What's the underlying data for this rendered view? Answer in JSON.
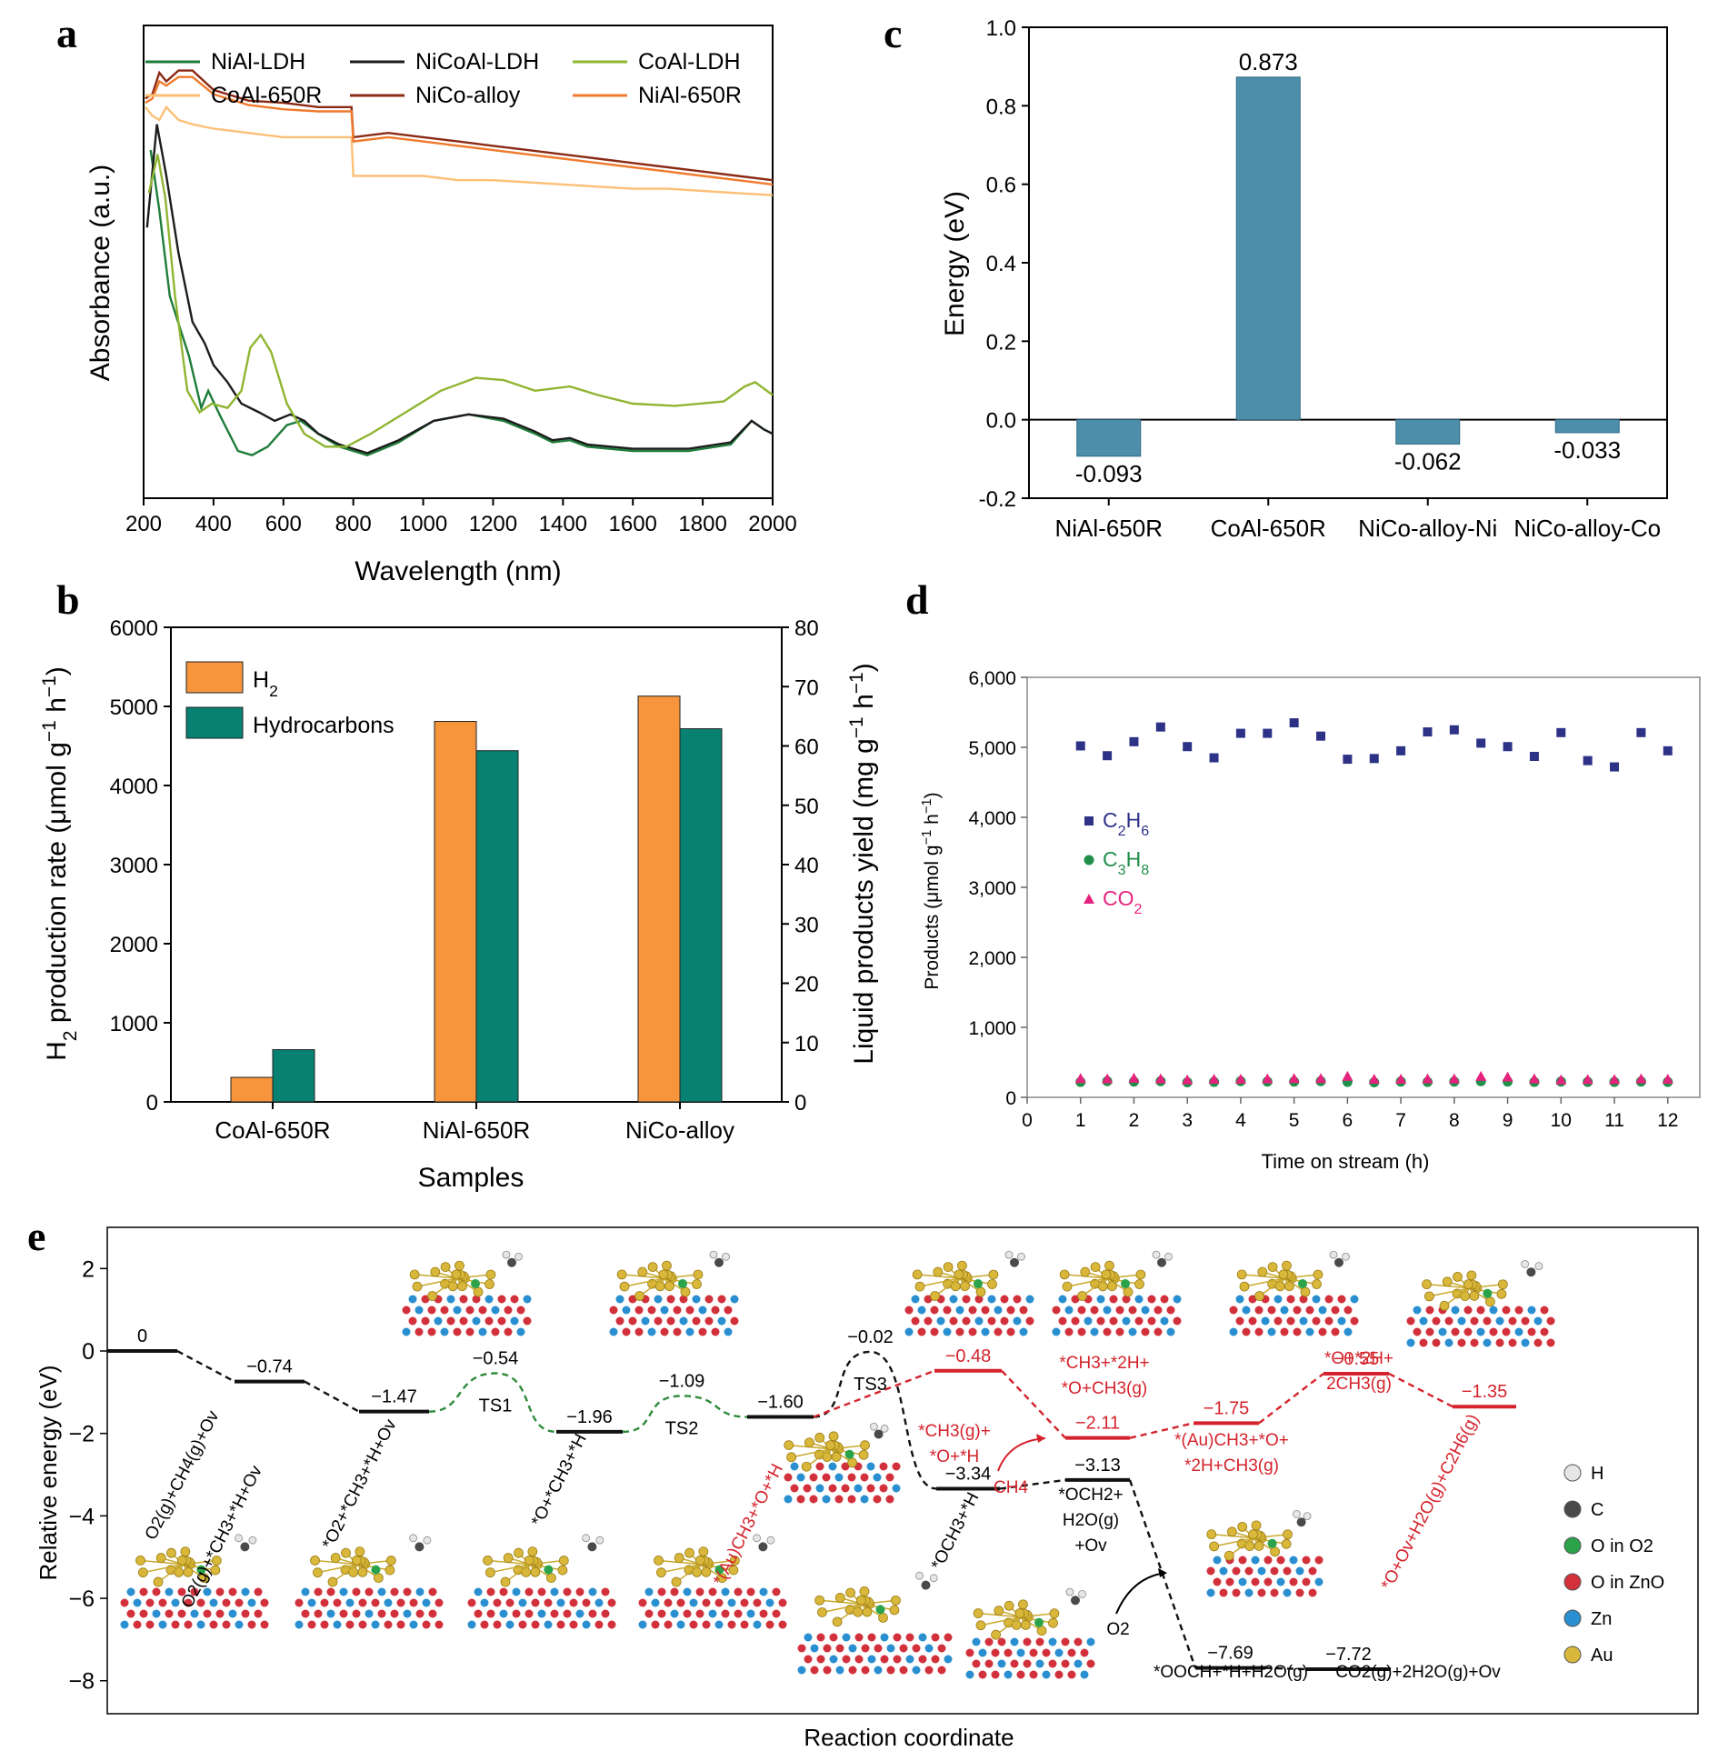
{
  "panel_letters": [
    "a",
    "b",
    "c",
    "d",
    "e"
  ],
  "chart_data": [
    {
      "panel": "a",
      "type": "line",
      "xlabel": "Wavelength (nm)",
      "ylabel": "Absorbance (a.u.)",
      "xlim": [
        200,
        2000
      ],
      "xticks": [
        "200",
        "400",
        "600",
        "800",
        "1000",
        "1200",
        "1400",
        "1600",
        "1800",
        "2000"
      ],
      "yticks": "none",
      "legend": "top, 3 columns",
      "series": [
        {
          "name": "NiAl-LDH",
          "color": "#1e7d3a",
          "points": [
            [
              220,
              1.06
            ],
            [
              245,
              0.92
            ],
            [
              275,
              0.72
            ],
            [
              330,
              0.58
            ],
            [
              365,
              0.46
            ],
            [
              385,
              0.5
            ],
            [
              420,
              0.44
            ],
            [
              470,
              0.36
            ],
            [
              510,
              0.35
            ],
            [
              555,
              0.37
            ],
            [
              610,
              0.42
            ],
            [
              650,
              0.43
            ],
            [
              700,
              0.4
            ],
            [
              760,
              0.37
            ],
            [
              840,
              0.35
            ],
            [
              930,
              0.38
            ],
            [
              1030,
              0.43
            ],
            [
              1130,
              0.445
            ],
            [
              1230,
              0.43
            ],
            [
              1320,
              0.4
            ],
            [
              1370,
              0.38
            ],
            [
              1420,
              0.385
            ],
            [
              1470,
              0.37
            ],
            [
              1600,
              0.36
            ],
            [
              1760,
              0.36
            ],
            [
              1880,
              0.375
            ],
            [
              1940,
              0.43
            ],
            [
              1975,
              0.41
            ],
            [
              2000,
              0.4
            ]
          ]
        },
        {
          "name": "NiCoAl-LDH",
          "color": "#1c1c1c",
          "points": [
            [
              210,
              0.88
            ],
            [
              238,
              1.12
            ],
            [
              265,
              1.0
            ],
            [
              300,
              0.82
            ],
            [
              340,
              0.66
            ],
            [
              375,
              0.61
            ],
            [
              400,
              0.56
            ],
            [
              440,
              0.52
            ],
            [
              480,
              0.47
            ],
            [
              530,
              0.45
            ],
            [
              575,
              0.43
            ],
            [
              620,
              0.445
            ],
            [
              660,
              0.43
            ],
            [
              700,
              0.4
            ],
            [
              760,
              0.375
            ],
            [
              840,
              0.355
            ],
            [
              930,
              0.385
            ],
            [
              1030,
              0.43
            ],
            [
              1130,
              0.445
            ],
            [
              1230,
              0.435
            ],
            [
              1320,
              0.405
            ],
            [
              1370,
              0.385
            ],
            [
              1420,
              0.39
            ],
            [
              1470,
              0.375
            ],
            [
              1600,
              0.365
            ],
            [
              1760,
              0.365
            ],
            [
              1880,
              0.38
            ],
            [
              1940,
              0.43
            ],
            [
              1975,
              0.41
            ],
            [
              2000,
              0.4
            ]
          ]
        },
        {
          "name": "CoAl-LDH",
          "color": "#8fb531",
          "points": [
            [
              215,
              0.96
            ],
            [
              240,
              1.05
            ],
            [
              262,
              0.95
            ],
            [
              290,
              0.72
            ],
            [
              325,
              0.5
            ],
            [
              360,
              0.45
            ],
            [
              395,
              0.47
            ],
            [
              440,
              0.46
            ],
            [
              480,
              0.5
            ],
            [
              505,
              0.6
            ],
            [
              535,
              0.63
            ],
            [
              565,
              0.59
            ],
            [
              610,
              0.47
            ],
            [
              660,
              0.4
            ],
            [
              720,
              0.37
            ],
            [
              780,
              0.37
            ],
            [
              850,
              0.4
            ],
            [
              950,
              0.45
            ],
            [
              1050,
              0.5
            ],
            [
              1150,
              0.53
            ],
            [
              1230,
              0.525
            ],
            [
              1320,
              0.5
            ],
            [
              1420,
              0.51
            ],
            [
              1500,
              0.49
            ],
            [
              1600,
              0.47
            ],
            [
              1720,
              0.465
            ],
            [
              1860,
              0.475
            ],
            [
              1920,
              0.51
            ],
            [
              1950,
              0.52
            ],
            [
              2000,
              0.49
            ]
          ]
        },
        {
          "name": "CoAl-650R",
          "color": "#fcc077",
          "points": [
            [
              205,
              1.16
            ],
            [
              225,
              1.14
            ],
            [
              245,
              1.13
            ],
            [
              265,
              1.16
            ],
            [
              300,
              1.13
            ],
            [
              340,
              1.12
            ],
            [
              400,
              1.11
            ],
            [
              500,
              1.1
            ],
            [
              600,
              1.09
            ],
            [
              700,
              1.09
            ],
            [
              795,
              1.09
            ],
            [
              800,
              1.0
            ],
            [
              900,
              1.0
            ],
            [
              1000,
              1.0
            ],
            [
              1100,
              0.99
            ],
            [
              1200,
              0.99
            ],
            [
              1300,
              0.985
            ],
            [
              1400,
              0.98
            ],
            [
              1500,
              0.975
            ],
            [
              1600,
              0.97
            ],
            [
              1700,
              0.97
            ],
            [
              1800,
              0.965
            ],
            [
              1900,
              0.96
            ],
            [
              2000,
              0.955
            ]
          ]
        },
        {
          "name": "NiCo-alloy",
          "color": "#8b2a14",
          "points": [
            [
              205,
              1.18
            ],
            [
              225,
              1.19
            ],
            [
              245,
              1.24
            ],
            [
              265,
              1.22
            ],
            [
              300,
              1.245
            ],
            [
              340,
              1.245
            ],
            [
              400,
              1.2
            ],
            [
              500,
              1.175
            ],
            [
              600,
              1.17
            ],
            [
              700,
              1.16
            ],
            [
              795,
              1.16
            ],
            [
              800,
              1.09
            ],
            [
              900,
              1.1
            ],
            [
              1000,
              1.09
            ],
            [
              1100,
              1.08
            ],
            [
              1200,
              1.07
            ],
            [
              1300,
              1.06
            ],
            [
              1400,
              1.05
            ],
            [
              1500,
              1.04
            ],
            [
              1600,
              1.03
            ],
            [
              1700,
              1.02
            ],
            [
              1800,
              1.01
            ],
            [
              1900,
              1.0
            ],
            [
              2000,
              0.99
            ]
          ]
        },
        {
          "name": "NiAl-650R",
          "color": "#ef7a2d",
          "points": [
            [
              205,
              1.17
            ],
            [
              225,
              1.18
            ],
            [
              245,
              1.22
            ],
            [
              265,
              1.21
            ],
            [
              300,
              1.23
            ],
            [
              340,
              1.23
            ],
            [
              400,
              1.19
            ],
            [
              500,
              1.165
            ],
            [
              600,
              1.155
            ],
            [
              700,
              1.15
            ],
            [
              795,
              1.15
            ],
            [
              800,
              1.08
            ],
            [
              900,
              1.09
            ],
            [
              1000,
              1.08
            ],
            [
              1100,
              1.07
            ],
            [
              1200,
              1.06
            ],
            [
              1300,
              1.05
            ],
            [
              1400,
              1.04
            ],
            [
              1500,
              1.03
            ],
            [
              1600,
              1.02
            ],
            [
              1700,
              1.01
            ],
            [
              1800,
              1.0
            ],
            [
              1900,
              0.99
            ],
            [
              2000,
              0.98
            ]
          ]
        }
      ]
    },
    {
      "panel": "b",
      "type": "bar",
      "xlabel": "Samples",
      "ylabel": "H2 production rate (μmol g⁻¹ h⁻¹)",
      "ylabel2": "Liquid products yield (mg g⁻¹ h⁻¹)",
      "categories": [
        "CoAl-650R",
        "NiAl-650R",
        "NiCo-alloy"
      ],
      "ylim": [
        0,
        6000
      ],
      "yticks": [
        "0",
        "1000",
        "2000",
        "3000",
        "4000",
        "5000",
        "6000"
      ],
      "ylim2": [
        0,
        80
      ],
      "yticks2": [
        "0",
        "10",
        "20",
        "30",
        "40",
        "50",
        "60",
        "70",
        "80"
      ],
      "legend": "top-left",
      "series": [
        {
          "name": "H2",
          "color": "#f7953d",
          "axis": "left",
          "values": [
            310,
            4810,
            5130
          ]
        },
        {
          "name": "Hydrocarbons",
          "color": "#078272",
          "axis": "right",
          "values": [
            8.8,
            59.2,
            62.9
          ]
        }
      ]
    },
    {
      "panel": "c",
      "type": "bar",
      "xlabel": "",
      "ylabel": "Energy (eV)",
      "categories": [
        "NiAl-650R",
        "CoAl-650R",
        "NiCo-alloy-Ni",
        "NiCo-alloy-Co"
      ],
      "values": [
        -0.093,
        0.873,
        -0.062,
        -0.033
      ],
      "data_labels": [
        "-0.093",
        "0.873",
        "-0.062",
        "-0.033"
      ],
      "ylim": [
        -0.2,
        1.0
      ],
      "yticks": [
        "-0.2",
        "0.0",
        "0.2",
        "0.4",
        "0.6",
        "0.8",
        "1.0"
      ],
      "bar_color": "#4d8eab"
    },
    {
      "panel": "d",
      "type": "scatter",
      "xlabel": "Time on stream (h)",
      "ylabel": "Products (μmol g⁻¹ h⁻¹)",
      "xlim": [
        0,
        12.6
      ],
      "xticks": [
        "0",
        "1",
        "2",
        "3",
        "4",
        "5",
        "6",
        "7",
        "8",
        "9",
        "10",
        "11",
        "12"
      ],
      "ylim": [
        0,
        6000
      ],
      "yticks": [
        "0",
        "1,000",
        "2,000",
        "3,000",
        "4,000",
        "5,000",
        "6,000"
      ],
      "legend": "left-center",
      "x": [
        1,
        1.5,
        2,
        2.5,
        3,
        3.5,
        4,
        4.5,
        5,
        5.5,
        6,
        6.5,
        7,
        7.5,
        8,
        8.5,
        9,
        9.5,
        10,
        10.5,
        11,
        11.5,
        12
      ],
      "series": [
        {
          "name": "C2H6",
          "label_parts": [
            "C",
            "2",
            "H",
            "6"
          ],
          "marker": "square",
          "color": "#2d3287",
          "values": [
            5020,
            4880,
            5080,
            5290,
            5010,
            4850,
            5200,
            5200,
            5350,
            5160,
            4830,
            4840,
            4950,
            5220,
            5250,
            5060,
            5010,
            4870,
            5210,
            4810,
            4720,
            5210,
            4950
          ]
        },
        {
          "name": "C3H8",
          "label_parts": [
            "C",
            "3",
            "H",
            "8"
          ],
          "marker": "circle",
          "color": "#1f8f4a",
          "values": [
            220,
            230,
            225,
            230,
            215,
            220,
            230,
            225,
            225,
            230,
            220,
            215,
            225,
            220,
            225,
            230,
            225,
            220,
            225,
            220,
            220,
            225,
            220
          ]
        },
        {
          "name": "CO2",
          "label_parts": [
            "CO",
            "2",
            "",
            ""
          ],
          "marker": "triangle",
          "color": "#e5237d",
          "values": [
            270,
            265,
            275,
            265,
            250,
            260,
            260,
            265,
            270,
            270,
            300,
            260,
            260,
            265,
            265,
            300,
            290,
            265,
            250,
            255,
            255,
            265,
            260
          ]
        }
      ]
    },
    {
      "panel": "e",
      "type": "energy-profile",
      "xlabel": "Reaction coordinate",
      "ylabel": "Relative energy (eV)",
      "ylim": [
        -8.8,
        3.0
      ],
      "yticks": [
        "-8",
        "-6",
        "-4",
        "-2",
        "0",
        "2"
      ],
      "levels": [
        {
          "value": "0",
          "energy": 0,
          "path": "black",
          "label": "O2(g)+CH4(g)+Ov"
        },
        {
          "value": "−0.74",
          "energy": -0.74,
          "path": "black",
          "label": "O2(g)+*CH3+*H+Ov"
        },
        {
          "value": "−1.47",
          "energy": -1.47,
          "path": "black",
          "label": "*O2+*CH3+*H+Ov"
        },
        {
          "value": "−0.54",
          "energy": -0.54,
          "path": "green",
          "ts": "TS1"
        },
        {
          "value": "−1.96",
          "energy": -1.96,
          "path": "black",
          "label": "*O+*CH3+*H"
        },
        {
          "value": "−1.09",
          "energy": -1.09,
          "path": "green",
          "ts": "TS2"
        },
        {
          "value": "−1.60",
          "energy": -1.6,
          "path": "black",
          "label": "*(Au)CH3+*O+*H"
        },
        {
          "value": "−0.02",
          "energy": -0.02,
          "path": "black",
          "ts": "TS3"
        },
        {
          "value": "−3.34",
          "energy": -3.34,
          "path": "black",
          "label": "*OCH3+*H"
        },
        {
          "value": "−3.13",
          "energy": -3.13,
          "path": "black",
          "label": "*OCH2+ H2O(g) +Ov"
        },
        {
          "value": "−7.69",
          "energy": -7.69,
          "path": "black",
          "label": "*OOCH+*H+H2O(g)"
        },
        {
          "value": "−7.72",
          "energy": -7.72,
          "path": "black",
          "label": "CO2(g)+2H2O(g)+Ov"
        },
        {
          "value": "−0.48",
          "energy": -0.48,
          "path": "red",
          "label": "*CH3(g)+ *O+*H"
        },
        {
          "value": "−2.11",
          "energy": -2.11,
          "path": "red",
          "label": "*CH3+*2H+ *O+CH3(g)"
        },
        {
          "value": "−1.75",
          "energy": -1.75,
          "path": "red",
          "label": "*(Au)CH3+*O+ *2H+CH3(g)"
        },
        {
          "value": "−0.55",
          "energy": -0.55,
          "path": "red",
          "label": "*O+*2H+ 2CH3(g)"
        },
        {
          "value": "−1.35",
          "energy": -1.35,
          "path": "red",
          "label": "*O+Ov+H2O(g)+C2H6(g)"
        }
      ],
      "annotations": [
        "CH4",
        "O2"
      ],
      "legend": [
        {
          "name": "H",
          "color": "#e6e6e6"
        },
        {
          "name": "C",
          "color": "#4a4a4a"
        },
        {
          "name": "O in O2",
          "color": "#2aa34a"
        },
        {
          "name": "O in ZnO",
          "color": "#d2313b"
        },
        {
          "name": "Zn",
          "color": "#2a8fd0"
        },
        {
          "name": "Au",
          "color": "#d8b73a"
        }
      ]
    }
  ]
}
